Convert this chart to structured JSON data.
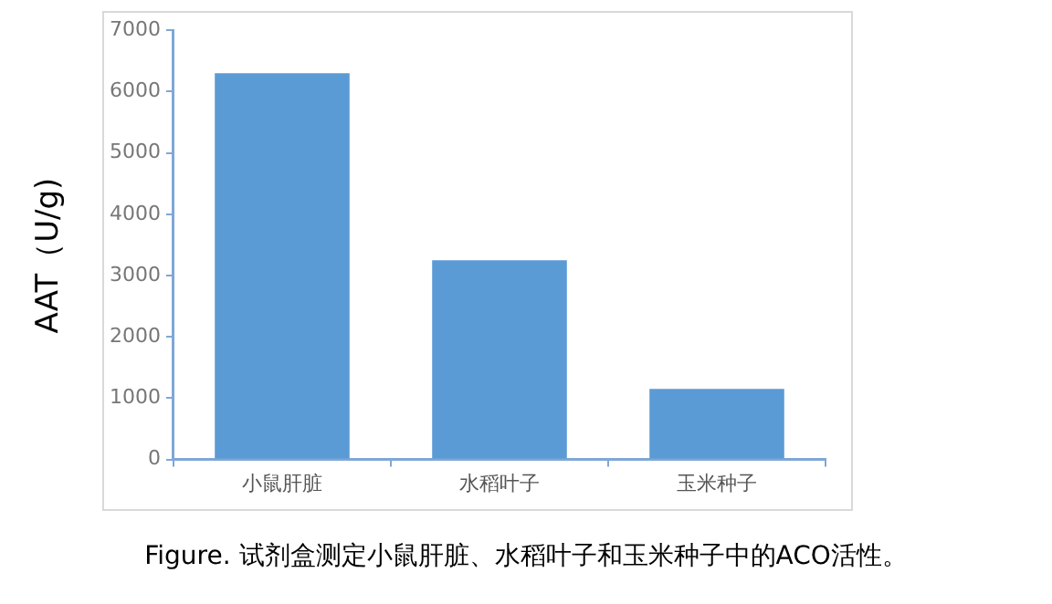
{
  "chart_data": {
    "type": "bar",
    "ylabel": "AAT（U/g)",
    "annotations": [
      "Figure. 试剂盒测定小鼠肝脏、水稻叶子和玉米种子中的ACO活性。"
    ],
    "categories": [
      "小鼠肝脏",
      "水稻叶子",
      "玉米种子"
    ],
    "values": [
      6300,
      3250,
      1150
    ],
    "color": "#5b9bd5",
    "ylim": [
      0,
      7000
    ],
    "yticks": [
      0,
      1000,
      2000,
      3000,
      4000,
      5000,
      6000,
      7000
    ],
    "grid": false,
    "legend": false
  }
}
